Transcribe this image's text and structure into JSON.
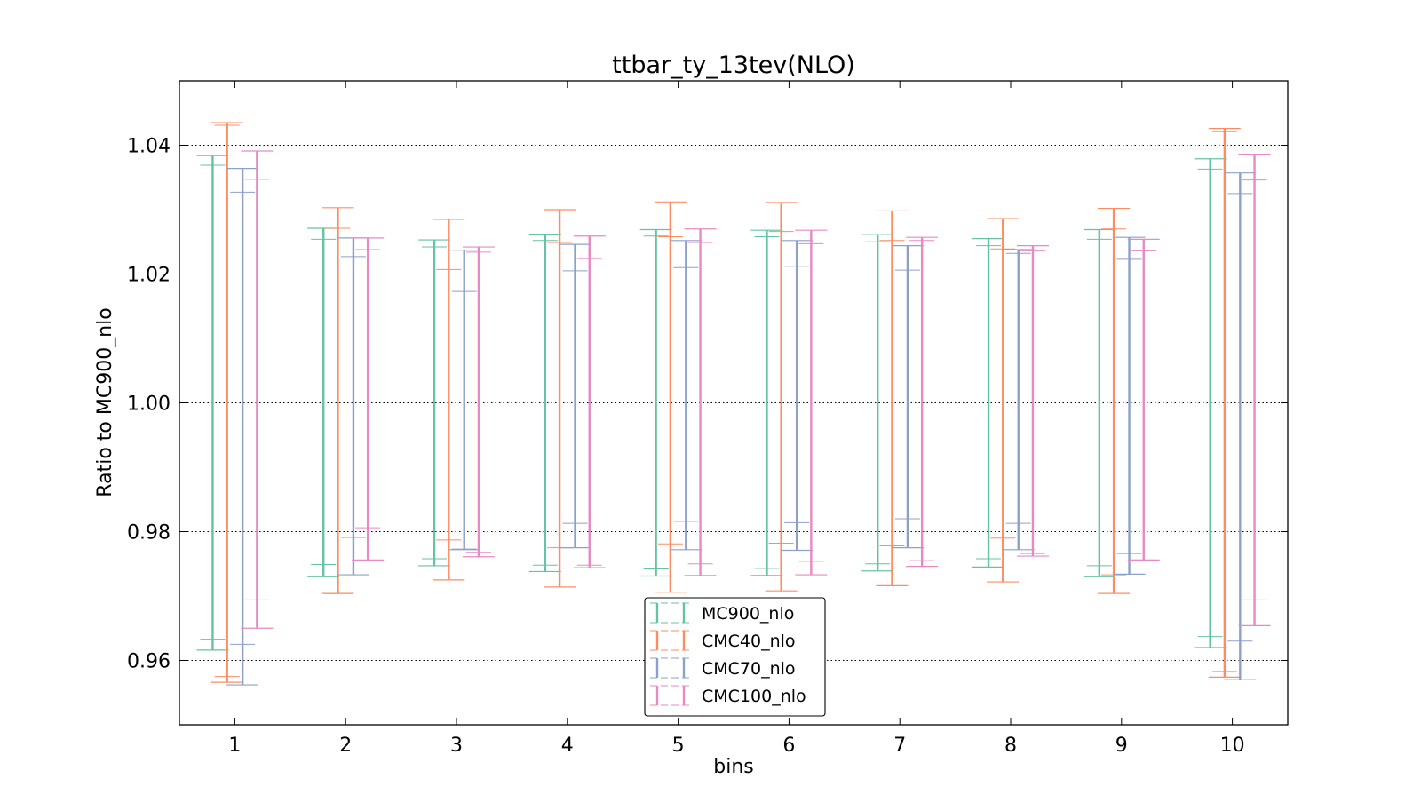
{
  "chart_data": {
    "type": "errorbar",
    "title": "ttbar_ty_13tev(NLO)",
    "xlabel": "bins",
    "ylabel": "Ratio to MC900_nlo",
    "xlim": [
      0.5,
      10.5
    ],
    "ylim": [
      0.95,
      1.05
    ],
    "grid": "horizontal dotted",
    "legend_position": "bottom-center",
    "categories": [
      "1",
      "2",
      "3",
      "4",
      "5",
      "6",
      "7",
      "8",
      "9",
      "10"
    ],
    "y_ticks": [
      "0.96",
      "0.98",
      "1.00",
      "1.02",
      "1.04"
    ],
    "series": [
      {
        "name": "MC900_nlo",
        "color": "#66c2a5",
        "offset": -0.2,
        "upper_outer": [
          1.0384,
          1.0271,
          1.0253,
          1.0262,
          1.0269,
          1.0268,
          1.0261,
          1.0255,
          1.0269,
          1.0379
        ],
        "upper_inner": [
          1.0369,
          1.0254,
          1.0242,
          1.0252,
          1.0259,
          1.0258,
          1.025,
          1.0244,
          1.0254,
          1.0363
        ],
        "lower_inner": [
          0.9633,
          0.9749,
          0.9758,
          0.9748,
          0.9742,
          0.9743,
          0.975,
          0.9758,
          0.9747,
          0.9637
        ],
        "lower_outer": [
          0.9616,
          0.973,
          0.9747,
          0.9738,
          0.9731,
          0.9732,
          0.9739,
          0.9745,
          0.973,
          0.962
        ]
      },
      {
        "name": "CMC40_nlo",
        "color": "#fc8d62",
        "offset": -0.07,
        "upper_outer": [
          1.0435,
          1.0303,
          1.0285,
          1.03,
          1.0312,
          1.0311,
          1.0298,
          1.0286,
          1.0302,
          1.0426
        ],
        "upper_inner": [
          1.0431,
          1.0271,
          1.0207,
          1.0249,
          1.0258,
          1.0266,
          1.0252,
          1.0239,
          1.027,
          1.0421
        ],
        "lower_inner": [
          0.9575,
          0.9704,
          0.9787,
          0.9775,
          0.9781,
          0.9782,
          0.9778,
          0.979,
          0.9733,
          0.9583
        ],
        "lower_outer": [
          0.9566,
          0.9704,
          0.9725,
          0.9714,
          0.9706,
          0.9708,
          0.9716,
          0.9722,
          0.9704,
          0.9574
        ]
      },
      {
        "name": "CMC70_nlo",
        "color": "#8da0cb",
        "offset": 0.07,
        "upper_outer": [
          1.0364,
          1.0256,
          1.0237,
          1.0246,
          1.0252,
          1.0252,
          1.0244,
          1.0238,
          1.0257,
          1.0357
        ],
        "upper_inner": [
          1.0327,
          1.0227,
          1.0173,
          1.0205,
          1.021,
          1.0212,
          1.0206,
          1.0232,
          1.0223,
          1.0325
        ],
        "lower_inner": [
          0.9625,
          0.9791,
          0.9773,
          0.9813,
          0.9816,
          0.9814,
          0.982,
          0.9813,
          0.9766,
          0.963
        ],
        "lower_outer": [
          0.9562,
          0.9733,
          0.9772,
          0.9775,
          0.9772,
          0.9771,
          0.9775,
          0.9772,
          0.9734,
          0.957
        ]
      },
      {
        "name": "CMC100_nlo",
        "color": "#e78ac3",
        "offset": 0.2,
        "upper_outer": [
          1.0391,
          1.0256,
          1.0242,
          1.0259,
          1.027,
          1.0268,
          1.0257,
          1.0244,
          1.0254,
          1.0386
        ],
        "upper_inner": [
          1.0347,
          1.0238,
          1.0234,
          1.0224,
          1.0249,
          1.0247,
          1.0252,
          1.0236,
          1.0236,
          1.0346
        ],
        "lower_inner": [
          0.9694,
          0.9806,
          0.9768,
          0.9748,
          0.975,
          0.9754,
          0.9755,
          0.9766,
          0.9756,
          0.9694
        ],
        "lower_outer": [
          0.965,
          0.9756,
          0.9761,
          0.9744,
          0.9732,
          0.9733,
          0.9746,
          0.9762,
          0.9756,
          0.9654
        ]
      }
    ]
  }
}
